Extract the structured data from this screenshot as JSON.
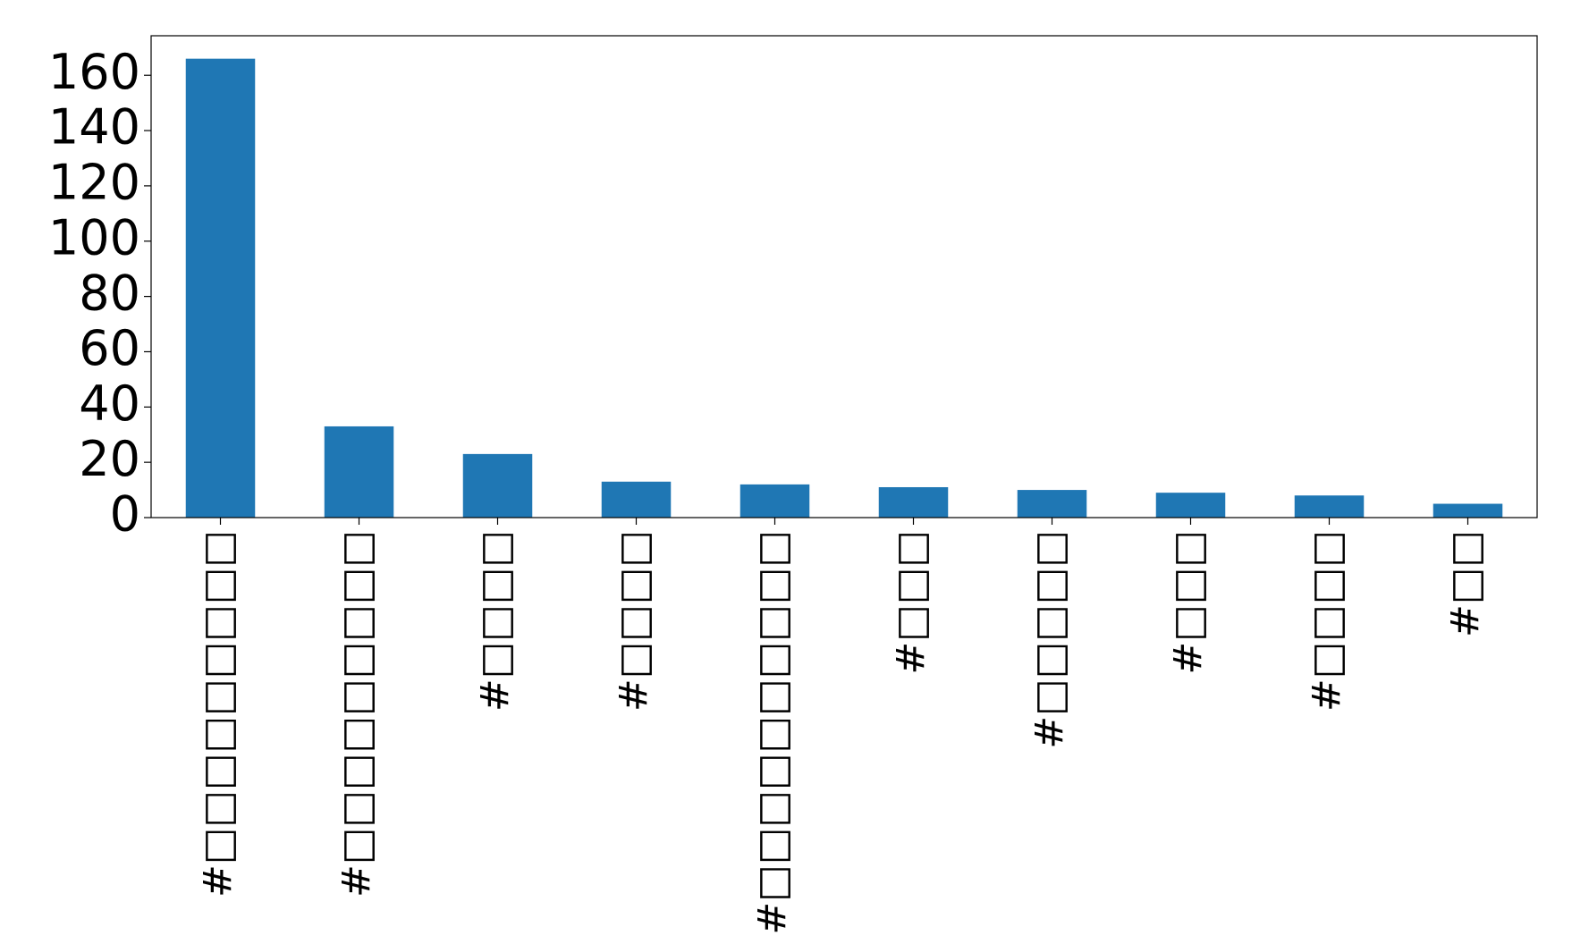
{
  "chart_data": {
    "type": "bar",
    "categories": [
      "#□□□□□□□□□",
      "#□□□□□□□□□",
      "#□□□□",
      "#□□□□",
      "#□□□□□□□□□□",
      "#□□□",
      "#□□□□□",
      "#□□□",
      "#□□□□",
      "#□□"
    ],
    "values": [
      166,
      33,
      23,
      13,
      12,
      11,
      10,
      9,
      8,
      5
    ],
    "color": "#1f77b4",
    "ylim": [
      0,
      174.3
    ],
    "yticks": [
      0,
      20,
      40,
      60,
      80,
      100,
      120,
      140,
      160
    ],
    "grid": false
  }
}
